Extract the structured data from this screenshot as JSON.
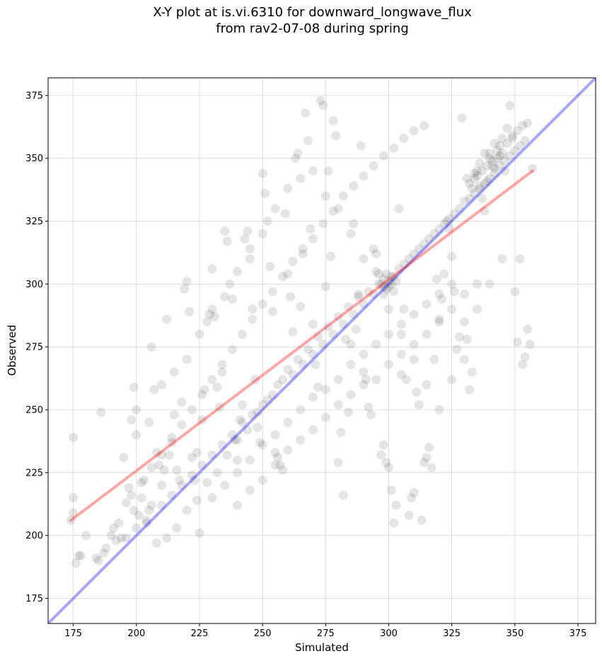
{
  "chart_data": {
    "type": "scatter",
    "title": "X-Y plot at is.vi.6310 for downward_longwave_flux\nfrom rav2-07-08 during spring",
    "xlabel": "Simulated",
    "ylabel": "Observed",
    "xlim": [
      165,
      382
    ],
    "ylim": [
      165,
      382
    ],
    "xticks": [
      175,
      200,
      225,
      250,
      275,
      300,
      325,
      350,
      375
    ],
    "yticks": [
      175,
      200,
      225,
      250,
      275,
      300,
      325,
      350,
      375
    ],
    "grid": true,
    "marker_color": "#000000",
    "marker_alpha": 0.1,
    "reference_line": {
      "label": "1:1",
      "color": "#0000ff",
      "points": [
        [
          165,
          165
        ],
        [
          382,
          382
        ]
      ]
    },
    "fit_line": {
      "color": "#ff0000",
      "points": [
        [
          174,
          206
        ],
        [
          357,
          345
        ]
      ]
    },
    "points": [
      [
        174,
        206
      ],
      [
        175,
        209
      ],
      [
        175,
        215
      ],
      [
        176,
        189
      ],
      [
        175,
        239
      ],
      [
        177,
        192
      ],
      [
        178,
        192
      ],
      [
        180,
        200
      ],
      [
        184,
        191
      ],
      [
        185,
        190
      ],
      [
        186,
        249
      ],
      [
        187,
        193
      ],
      [
        188,
        195
      ],
      [
        190,
        200
      ],
      [
        191,
        203
      ],
      [
        192,
        198
      ],
      [
        193,
        205
      ],
      [
        194,
        199
      ],
      [
        195,
        231
      ],
      [
        196,
        213
      ],
      [
        197,
        219
      ],
      [
        198,
        246
      ],
      [
        199,
        259
      ],
      [
        200,
        250
      ],
      [
        199,
        210
      ],
      [
        201,
        208
      ],
      [
        202,
        215
      ],
      [
        203,
        222
      ],
      [
        204,
        205
      ],
      [
        205,
        210
      ],
      [
        206,
        212
      ],
      [
        206,
        275
      ],
      [
        207,
        258
      ],
      [
        208,
        233
      ],
      [
        209,
        228
      ],
      [
        210,
        220
      ],
      [
        211,
        226
      ],
      [
        212,
        286
      ],
      [
        213,
        232
      ],
      [
        214,
        237
      ],
      [
        215,
        248
      ],
      [
        216,
        226
      ],
      [
        217,
        222
      ],
      [
        218,
        253
      ],
      [
        219,
        298
      ],
      [
        220,
        301
      ],
      [
        221,
        289
      ],
      [
        222,
        231
      ],
      [
        223,
        222
      ],
      [
        224,
        233
      ],
      [
        225,
        201
      ],
      [
        226,
        246
      ],
      [
        227,
        258
      ],
      [
        228,
        285
      ],
      [
        229,
        288
      ],
      [
        230,
        306
      ],
      [
        231,
        287
      ],
      [
        232,
        259
      ],
      [
        233,
        251
      ],
      [
        234,
        265
      ],
      [
        235,
        321
      ],
      [
        236,
        317
      ],
      [
        237,
        300
      ],
      [
        238,
        294
      ],
      [
        239,
        238
      ],
      [
        240,
        230
      ],
      [
        241,
        246
      ],
      [
        242,
        252
      ],
      [
        243,
        318
      ],
      [
        244,
        321
      ],
      [
        245,
        314
      ],
      [
        246,
        290
      ],
      [
        247,
        262
      ],
      [
        248,
        243
      ],
      [
        249,
        237
      ],
      [
        250,
        344
      ],
      [
        251,
        336
      ],
      [
        252,
        325
      ],
      [
        253,
        307
      ],
      [
        254,
        289
      ],
      [
        255,
        233
      ],
      [
        256,
        231
      ],
      [
        257,
        228
      ],
      [
        258,
        226
      ],
      [
        259,
        328
      ],
      [
        260,
        304
      ],
      [
        261,
        295
      ],
      [
        262,
        281
      ],
      [
        263,
        350
      ],
      [
        264,
        352
      ],
      [
        265,
        291
      ],
      [
        266,
        312
      ],
      [
        267,
        368
      ],
      [
        268,
        357
      ],
      [
        269,
        322
      ],
      [
        270,
        284
      ],
      [
        271,
        268
      ],
      [
        272,
        259
      ],
      [
        273,
        373
      ],
      [
        274,
        371
      ],
      [
        275,
        299
      ],
      [
        276,
        345
      ],
      [
        277,
        311
      ],
      [
        278,
        365
      ],
      [
        279,
        359
      ],
      [
        280,
        229
      ],
      [
        281,
        241
      ],
      [
        282,
        216
      ],
      [
        283,
        278
      ],
      [
        284,
        249
      ],
      [
        285,
        276
      ],
      [
        286,
        324
      ],
      [
        287,
        282
      ],
      [
        288,
        296
      ],
      [
        289,
        355
      ],
      [
        290,
        265
      ],
      [
        291,
        262
      ],
      [
        292,
        251
      ],
      [
        293,
        248
      ],
      [
        294,
        314
      ],
      [
        295,
        312
      ],
      [
        296,
        304
      ],
      [
        297,
        232
      ],
      [
        298,
        236
      ],
      [
        299,
        229
      ],
      [
        300,
        227
      ],
      [
        301,
        218
      ],
      [
        302,
        205
      ],
      [
        303,
        212
      ],
      [
        304,
        330
      ],
      [
        305,
        264
      ],
      [
        306,
        290
      ],
      [
        307,
        262
      ],
      [
        308,
        208
      ],
      [
        309,
        215
      ],
      [
        310,
        217
      ],
      [
        311,
        257
      ],
      [
        312,
        252
      ],
      [
        313,
        206
      ],
      [
        314,
        229
      ],
      [
        315,
        231
      ],
      [
        316,
        235
      ],
      [
        317,
        227
      ],
      [
        318,
        270
      ],
      [
        319,
        302
      ],
      [
        320,
        285
      ],
      [
        321,
        294
      ],
      [
        322,
        304
      ],
      [
        323,
        325
      ],
      [
        324,
        322
      ],
      [
        325,
        311
      ],
      [
        326,
        297
      ],
      [
        327,
        274
      ],
      [
        328,
        279
      ],
      [
        329,
        366
      ],
      [
        330,
        285
      ],
      [
        331,
        278
      ],
      [
        332,
        258
      ],
      [
        333,
        265
      ],
      [
        334,
        342
      ],
      [
        335,
        345
      ],
      [
        336,
        339
      ],
      [
        337,
        334
      ],
      [
        338,
        329
      ],
      [
        339,
        341
      ],
      [
        340,
        352
      ],
      [
        341,
        347
      ],
      [
        342,
        356
      ],
      [
        343,
        350
      ],
      [
        344,
        351
      ],
      [
        345,
        358
      ],
      [
        346,
        345
      ],
      [
        347,
        362
      ],
      [
        348,
        371
      ],
      [
        349,
        358
      ],
      [
        350,
        297
      ],
      [
        351,
        277
      ],
      [
        352,
        310
      ],
      [
        353,
        268
      ],
      [
        354,
        271
      ],
      [
        355,
        282
      ],
      [
        356,
        276
      ],
      [
        357,
        346
      ],
      [
        208,
        197
      ],
      [
        212,
        199
      ],
      [
        216,
        203
      ],
      [
        220,
        210
      ],
      [
        224,
        214
      ],
      [
        228,
        221
      ],
      [
        232,
        225
      ],
      [
        236,
        232
      ],
      [
        240,
        238
      ],
      [
        244,
        242
      ],
      [
        248,
        249
      ],
      [
        252,
        254
      ],
      [
        256,
        260
      ],
      [
        260,
        266
      ],
      [
        264,
        270
      ],
      [
        268,
        274
      ],
      [
        272,
        279
      ],
      [
        276,
        283
      ],
      [
        280,
        287
      ],
      [
        284,
        291
      ],
      [
        288,
        295
      ],
      [
        292,
        297
      ],
      [
        296,
        300
      ],
      [
        300,
        301
      ],
      [
        304,
        306
      ],
      [
        308,
        310
      ],
      [
        312,
        314
      ],
      [
        316,
        318
      ],
      [
        320,
        322
      ],
      [
        324,
        326
      ],
      [
        328,
        330
      ],
      [
        332,
        334
      ],
      [
        336,
        338
      ],
      [
        340,
        342
      ],
      [
        344,
        347
      ],
      [
        348,
        351
      ],
      [
        352,
        355
      ],
      [
        196,
        199
      ],
      [
        200,
        203
      ],
      [
        204,
        206
      ],
      [
        210,
        212
      ],
      [
        214,
        216
      ],
      [
        218,
        220
      ],
      [
        222,
        224
      ],
      [
        226,
        228
      ],
      [
        230,
        232
      ],
      [
        234,
        236
      ],
      [
        238,
        240
      ],
      [
        242,
        245
      ],
      [
        246,
        248
      ],
      [
        250,
        252
      ],
      [
        254,
        256
      ],
      [
        258,
        262
      ],
      [
        262,
        264
      ],
      [
        266,
        268
      ],
      [
        270,
        272
      ],
      [
        274,
        276
      ],
      [
        278,
        280
      ],
      [
        282,
        284
      ],
      [
        286,
        288
      ],
      [
        290,
        292
      ],
      [
        294,
        296
      ],
      [
        298,
        299
      ],
      [
        302,
        303
      ],
      [
        306,
        308
      ],
      [
        310,
        312
      ],
      [
        314,
        316
      ],
      [
        318,
        320
      ],
      [
        322,
        324
      ],
      [
        326,
        328
      ],
      [
        330,
        333
      ],
      [
        334,
        336
      ],
      [
        338,
        340
      ],
      [
        342,
        344
      ],
      [
        346,
        349
      ],
      [
        350,
        353
      ],
      [
        354,
        357
      ],
      [
        198,
        216
      ],
      [
        202,
        221
      ],
      [
        206,
        227
      ],
      [
        210,
        232
      ],
      [
        214,
        239
      ],
      [
        218,
        244
      ],
      [
        222,
        250
      ],
      [
        226,
        256
      ],
      [
        230,
        262
      ],
      [
        234,
        268
      ],
      [
        238,
        274
      ],
      [
        242,
        280
      ],
      [
        246,
        286
      ],
      [
        250,
        292
      ],
      [
        254,
        297
      ],
      [
        258,
        303
      ],
      [
        262,
        309
      ],
      [
        266,
        314
      ],
      [
        270,
        318
      ],
      [
        274,
        324
      ],
      [
        278,
        329
      ],
      [
        282,
        335
      ],
      [
        286,
        339
      ],
      [
        290,
        343
      ],
      [
        294,
        347
      ],
      [
        298,
        351
      ],
      [
        302,
        354
      ],
      [
        306,
        358
      ],
      [
        310,
        361
      ],
      [
        314,
        363
      ],
      [
        200,
        240
      ],
      [
        205,
        245
      ],
      [
        210,
        260
      ],
      [
        215,
        265
      ],
      [
        220,
        270
      ],
      [
        225,
        280
      ],
      [
        230,
        290
      ],
      [
        235,
        295
      ],
      [
        240,
        305
      ],
      [
        245,
        310
      ],
      [
        250,
        320
      ],
      [
        255,
        330
      ],
      [
        260,
        338
      ],
      [
        265,
        342
      ],
      [
        270,
        345
      ],
      [
        275,
        335
      ],
      [
        280,
        330
      ],
      [
        285,
        320
      ],
      [
        290,
        310
      ],
      [
        295,
        305
      ],
      [
        300,
        290
      ],
      [
        305,
        280
      ],
      [
        310,
        270
      ],
      [
        315,
        260
      ],
      [
        320,
        250
      ],
      [
        325,
        262
      ],
      [
        330,
        270
      ],
      [
        335,
        290
      ],
      [
        340,
        300
      ],
      [
        345,
        310
      ],
      [
        230,
        215
      ],
      [
        235,
        220
      ],
      [
        240,
        225
      ],
      [
        245,
        230
      ],
      [
        250,
        236
      ],
      [
        255,
        240
      ],
      [
        260,
        245
      ],
      [
        265,
        250
      ],
      [
        270,
        255
      ],
      [
        275,
        258
      ],
      [
        280,
        262
      ],
      [
        285,
        268
      ],
      [
        290,
        272
      ],
      [
        295,
        276
      ],
      [
        300,
        280
      ],
      [
        305,
        284
      ],
      [
        310,
        288
      ],
      [
        315,
        292
      ],
      [
        320,
        296
      ],
      [
        325,
        300
      ],
      [
        240,
        212
      ],
      [
        245,
        218
      ],
      [
        250,
        222
      ],
      [
        255,
        228
      ],
      [
        260,
        234
      ],
      [
        265,
        238
      ],
      [
        270,
        242
      ],
      [
        275,
        247
      ],
      [
        280,
        252
      ],
      [
        285,
        256
      ],
      [
        290,
        260
      ],
      [
        295,
        262
      ],
      [
        300,
        268
      ],
      [
        305,
        272
      ],
      [
        310,
        276
      ],
      [
        315,
        280
      ],
      [
        320,
        286
      ],
      [
        325,
        290
      ],
      [
        330,
        296
      ],
      [
        335,
        300
      ],
      [
        297,
        300
      ],
      [
        298,
        302
      ],
      [
        299,
        298
      ],
      [
        300,
        299
      ],
      [
        301,
        303
      ],
      [
        302,
        297
      ],
      [
        303,
        301
      ],
      [
        299,
        304
      ],
      [
        298,
        296
      ],
      [
        301,
        300
      ],
      [
        336,
        348
      ],
      [
        338,
        352
      ],
      [
        340,
        350
      ],
      [
        337,
        345
      ],
      [
        339,
        347
      ],
      [
        341,
        349
      ],
      [
        343,
        353
      ],
      [
        342,
        346
      ],
      [
        335,
        343
      ],
      [
        344,
        355
      ],
      [
        332,
        340
      ],
      [
        333,
        338
      ],
      [
        334,
        344
      ],
      [
        331,
        342
      ],
      [
        345,
        352
      ],
      [
        347,
        356
      ],
      [
        349,
        359
      ],
      [
        351,
        361
      ],
      [
        353,
        363
      ],
      [
        355,
        364
      ]
    ]
  }
}
